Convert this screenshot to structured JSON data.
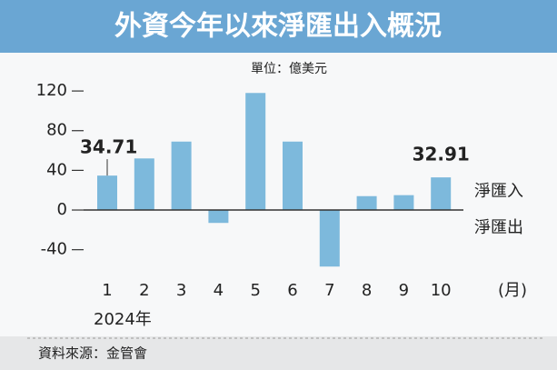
{
  "chart_data": {
    "type": "bar",
    "title": "外資今年以來淨匯出入概況",
    "unit": "單位：億美元",
    "categories": [
      "1",
      "2",
      "3",
      "4",
      "5",
      "6",
      "7",
      "8",
      "9",
      "10"
    ],
    "x_unit": "(月)",
    "year_label": "2024年",
    "values": [
      34.71,
      52,
      69,
      -13,
      118,
      69,
      -57,
      14,
      15,
      32.91
    ],
    "value_labels": [
      "34.71",
      null,
      null,
      null,
      null,
      null,
      null,
      null,
      null,
      "32.91"
    ],
    "color": "#7db9dc",
    "ylim": [
      -60,
      132
    ],
    "yticks": [
      -40,
      0,
      40,
      80,
      120
    ],
    "annotations": {
      "positive": "淨匯入",
      "negative": "淨匯出"
    },
    "source": "資料來源：金管會"
  }
}
